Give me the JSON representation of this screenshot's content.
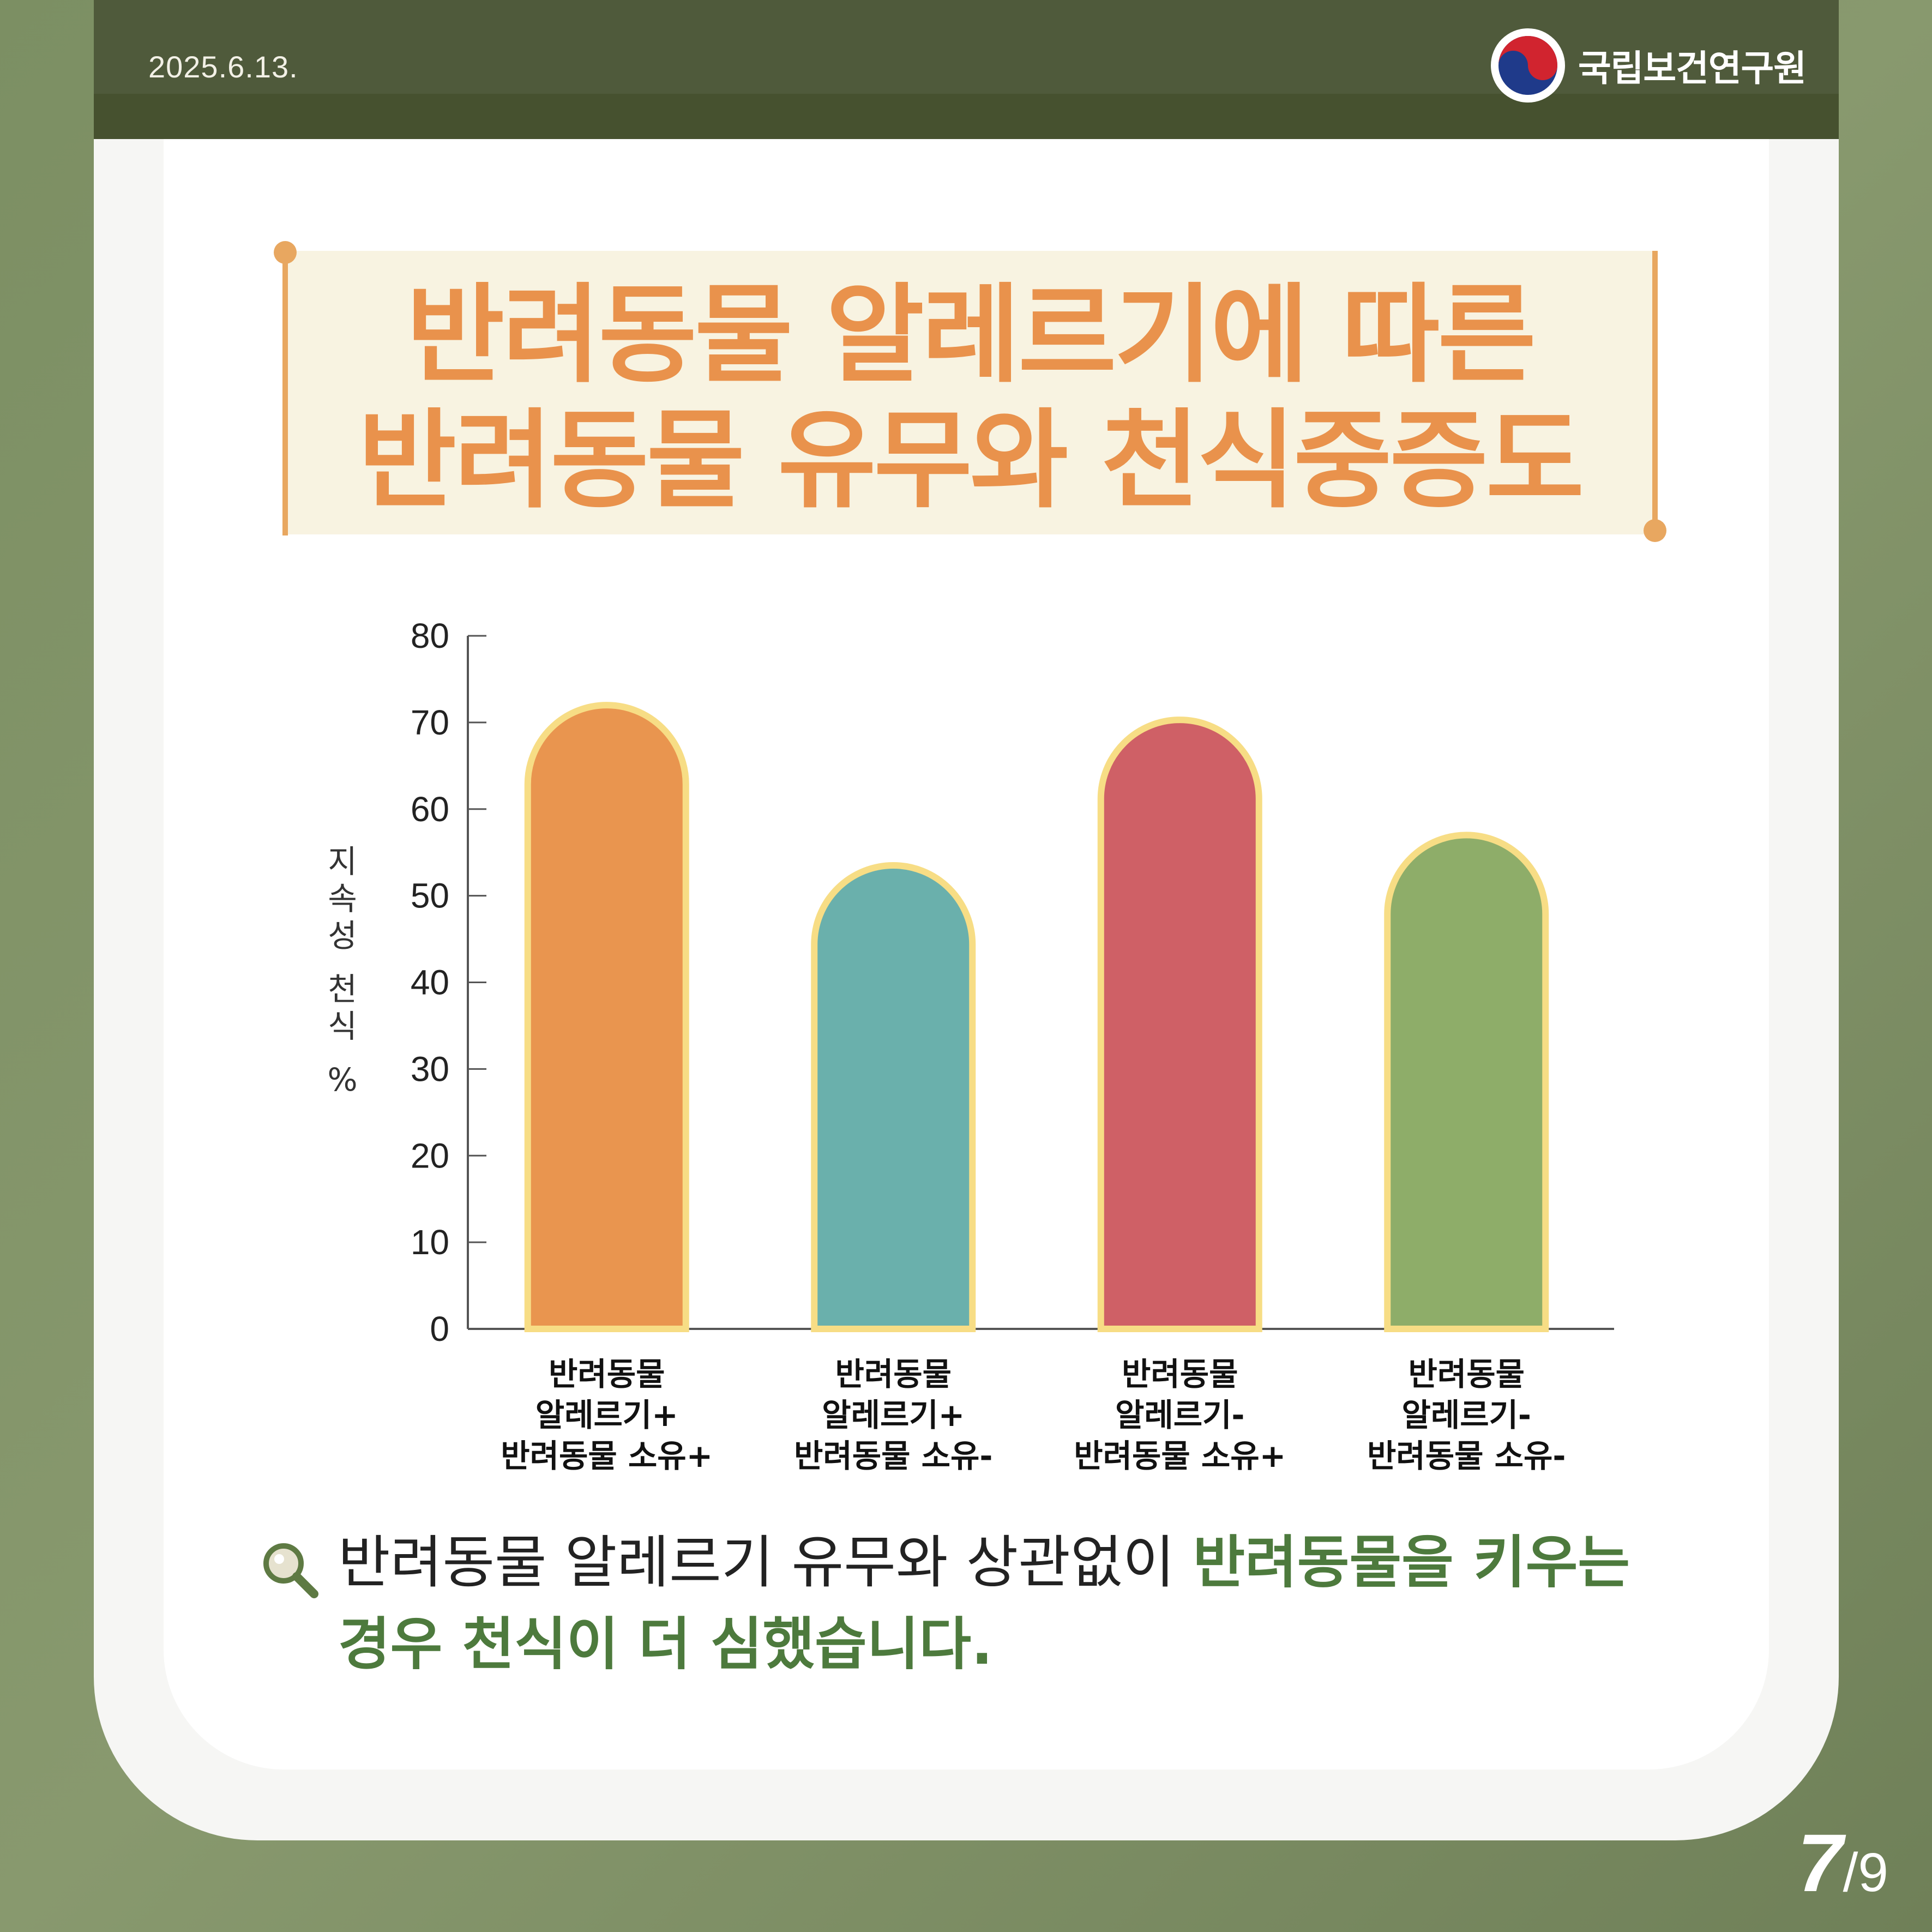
{
  "header": {
    "date": "2025.6.13.",
    "org_name": "국립보건연구원"
  },
  "title": {
    "line1": "반려동물 알레르기에 따른",
    "line2": "반려동물 유무와 천식중증도"
  },
  "chart_data": {
    "type": "bar",
    "categories": [
      [
        "반려동물",
        "알레르기+",
        "반려동물 소유+"
      ],
      [
        "반려동물",
        "알레르기+",
        "반려동물 소유-"
      ],
      [
        "반려동물",
        "알레르기-",
        "반려동물 소유+"
      ],
      [
        "반려동물",
        "알레르기-",
        "반려동물 소유-"
      ]
    ],
    "values": [
      72,
      53.5,
      70.3,
      57
    ],
    "colors": [
      "#e9954f",
      "#6ab0ac",
      "#cf6066",
      "#8ead69"
    ],
    "outline_color": "#f7dd85",
    "ylabel": "지속성 천식 %",
    "ylim": [
      0,
      80
    ],
    "yticks": [
      0,
      10,
      20,
      30,
      40,
      50,
      60,
      70,
      80
    ]
  },
  "note": {
    "plain": "반려동물 알레르기 유무와 상관없이 ",
    "highlight1": "반려동물을 키우는",
    "highlight2": "경우 천식이 더 심했습니다.",
    "icon": "search-icon"
  },
  "page": {
    "current": "7",
    "total": "/9"
  }
}
